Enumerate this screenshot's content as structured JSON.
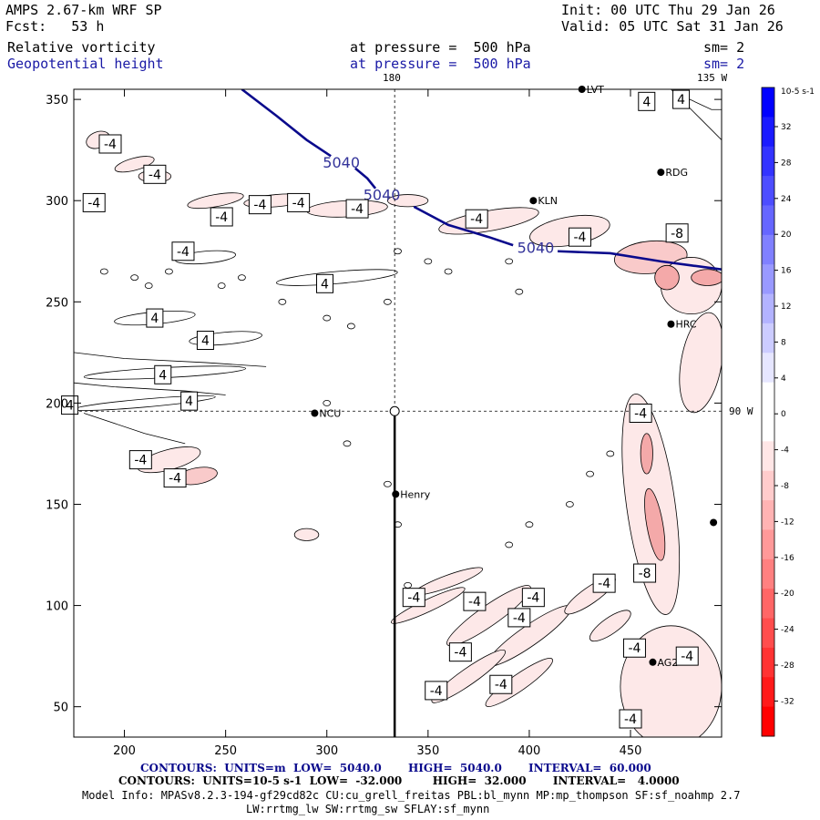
{
  "header": {
    "model": "AMPS 2.67-km WRF SP",
    "forecast": "Fcst:   53 h",
    "init": "Init: 00 UTC Thu 29 Jan 26",
    "valid": "Valid: 05 UTC Sat 31 Jan 26",
    "field1_name": "Relative vorticity",
    "field1_pressure": "at pressure =  500 hPa",
    "field1_sm": "sm= 2",
    "field2_name": "Geopotential height",
    "field2_pressure": "at pressure =  500 hPa",
    "field2_sm": "sm= 2"
  },
  "map_labels": {
    "meridian_180": "180",
    "meridian_135w": "135 W",
    "meridian_90w": "90 W"
  },
  "stations": [
    {
      "name": "LVT",
      "x": 426,
      "y": 355
    },
    {
      "name": "RDG",
      "x": 465,
      "y": 314
    },
    {
      "name": "KLN",
      "x": 402,
      "y": 300
    },
    {
      "name": "HRC",
      "x": 470,
      "y": 239
    },
    {
      "name": "NCU",
      "x": 294,
      "y": 195
    },
    {
      "name": "Henry",
      "x": 334,
      "y": 155
    },
    {
      "name": "AG2",
      "x": 461,
      "y": 72
    },
    {
      "name": "",
      "x": 491,
      "y": 141
    }
  ],
  "chart_data": {
    "type": "heatmap",
    "title": "Relative vorticity / Geopotential height at 500 hPa",
    "xlim": [
      175,
      495
    ],
    "ylim": [
      35,
      355
    ],
    "x_ticks": [
      200,
      250,
      300,
      350,
      400,
      450
    ],
    "y_ticks": [
      50,
      100,
      150,
      200,
      250,
      300,
      350
    ],
    "height_contour": {
      "level": 5040,
      "units": "m",
      "low": 5040.0,
      "high": 5040.0,
      "interval": 60.0,
      "color": "#0a0a8c",
      "labels": [
        "5040",
        "5040",
        "5040"
      ]
    },
    "vorticity_contour": {
      "units": "10^-5 s^-1",
      "low": -32.0,
      "high": 32.0,
      "interval": 4.0
    },
    "contour_labels": [
      {
        "text": "-4",
        "x": 193,
        "y": 328
      },
      {
        "text": "-4",
        "x": 215,
        "y": 313
      },
      {
        "text": "-4",
        "x": 248,
        "y": 292
      },
      {
        "text": "-4",
        "x": 267,
        "y": 298
      },
      {
        "text": "-4",
        "x": 315,
        "y": 296
      },
      {
        "text": "-4",
        "x": 286,
        "y": 299
      },
      {
        "text": "-4",
        "x": 229,
        "y": 275
      },
      {
        "text": "4",
        "x": 299,
        "y": 259
      },
      {
        "text": "4",
        "x": 215,
        "y": 242
      },
      {
        "text": "4",
        "x": 240,
        "y": 231
      },
      {
        "text": "4",
        "x": 219,
        "y": 214
      },
      {
        "text": "4",
        "x": 232,
        "y": 201
      },
      {
        "text": "4",
        "x": 173,
        "y": 199
      },
      {
        "text": "-4",
        "x": 185,
        "y": 299
      },
      {
        "text": "-4",
        "x": 374,
        "y": 291
      },
      {
        "text": "-4",
        "x": 425,
        "y": 282
      },
      {
        "text": "-8",
        "x": 473,
        "y": 284
      },
      {
        "text": "4",
        "x": 458,
        "y": 349
      },
      {
        "text": "4",
        "x": 475,
        "y": 350
      },
      {
        "text": "-4",
        "x": 455,
        "y": 195
      },
      {
        "text": "-4",
        "x": 208,
        "y": 172
      },
      {
        "text": "-4",
        "x": 225,
        "y": 163
      },
      {
        "text": "-8",
        "x": 457,
        "y": 116
      },
      {
        "text": "-4",
        "x": 437,
        "y": 111
      },
      {
        "text": "-4",
        "x": 402,
        "y": 104
      },
      {
        "text": "-4",
        "x": 373,
        "y": 102
      },
      {
        "text": "-4",
        "x": 343,
        "y": 104
      },
      {
        "text": "-4",
        "x": 395,
        "y": 94
      },
      {
        "text": "-4",
        "x": 366,
        "y": 77
      },
      {
        "text": "-4",
        "x": 452,
        "y": 79
      },
      {
        "text": "-4",
        "x": 478,
        "y": 75
      },
      {
        "text": "-4",
        "x": 386,
        "y": 61
      },
      {
        "text": "-4",
        "x": 354,
        "y": 58
      },
      {
        "text": "-4",
        "x": 450,
        "y": 44
      }
    ],
    "colorbar": {
      "unit_label": "10-5 s-1",
      "ticks": [
        "32",
        "28",
        "24",
        "20",
        "16",
        "12",
        "8",
        "4",
        "0",
        "-4",
        "-8",
        "-12",
        "-16",
        "-20",
        "-24",
        "-28",
        "-32"
      ],
      "colors_top_to_bottom": [
        "#0000ff",
        "#1a1aff",
        "#3333ff",
        "#4d4dff",
        "#6666ff",
        "#8080ff",
        "#9999ff",
        "#b3b3ff",
        "#ccccff",
        "#e6e6ff",
        "#ffffff",
        "#ffffff",
        "#ffe6e6",
        "#ffcccc",
        "#ffb3b3",
        "#ff9999",
        "#ff8080",
        "#ff6666",
        "#ff4d4d",
        "#ff3333",
        "#ff1a1a",
        "#ff0000"
      ]
    }
  },
  "footer": {
    "contours_height": "CONTOURS:  UNITS=m  LOW=  5040.0       HIGH=  5040.0       INTERVAL=  60.000",
    "contours_vort": "CONTOURS:  UNITS=10-5 s-1  LOW=  -32.000        HIGH=  32.000       INTERVAL=   4.0000",
    "model_info_1": "Model Info: MPASv8.2.3-194-gf29cd82c CU:cu_grell_freitas PBL:bl_mynn MP:mp_thompson SF:sf_noahmp 2.7",
    "model_info_2": "LW:rrtmg_lw SW:rrtmg_sw SFLAY:sf_mynn"
  }
}
